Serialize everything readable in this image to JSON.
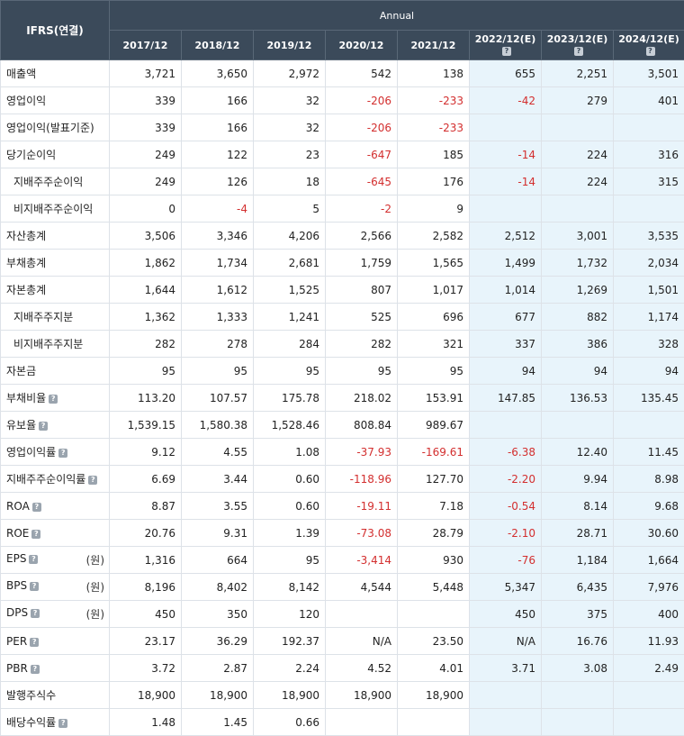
{
  "header": {
    "corner": "IFRS(연결)",
    "group": "Annual",
    "years": [
      {
        "label": "2017/12",
        "estimate": false
      },
      {
        "label": "2018/12",
        "estimate": false
      },
      {
        "label": "2019/12",
        "estimate": false
      },
      {
        "label": "2020/12",
        "estimate": false
      },
      {
        "label": "2021/12",
        "estimate": false
      },
      {
        "label": "2022/12(E)",
        "estimate": true
      },
      {
        "label": "2023/12(E)",
        "estimate": true
      },
      {
        "label": "2024/12(E)",
        "estimate": true
      }
    ]
  },
  "help_icon": "?",
  "rows": [
    {
      "label": "매출액",
      "sub": false,
      "help": false,
      "unit": "",
      "values": [
        "3,721",
        "3,650",
        "2,972",
        "542",
        "138",
        "655",
        "2,251",
        "3,501"
      ]
    },
    {
      "label": "영업이익",
      "sub": false,
      "help": false,
      "unit": "",
      "values": [
        "339",
        "166",
        "32",
        "-206",
        "-233",
        "-42",
        "279",
        "401"
      ]
    },
    {
      "label": "영업이익(발표기준)",
      "sub": false,
      "help": false,
      "unit": "",
      "values": [
        "339",
        "166",
        "32",
        "-206",
        "-233",
        "",
        "",
        ""
      ]
    },
    {
      "label": "당기순이익",
      "sub": false,
      "help": false,
      "unit": "",
      "values": [
        "249",
        "122",
        "23",
        "-647",
        "185",
        "-14",
        "224",
        "316"
      ]
    },
    {
      "label": "지배주주순이익",
      "sub": true,
      "help": false,
      "unit": "",
      "values": [
        "249",
        "126",
        "18",
        "-645",
        "176",
        "-14",
        "224",
        "315"
      ]
    },
    {
      "label": "비지배주주순이익",
      "sub": true,
      "help": false,
      "unit": "",
      "values": [
        "0",
        "-4",
        "5",
        "-2",
        "9",
        "",
        "",
        ""
      ]
    },
    {
      "label": "자산총계",
      "sub": false,
      "help": false,
      "unit": "",
      "values": [
        "3,506",
        "3,346",
        "4,206",
        "2,566",
        "2,582",
        "2,512",
        "3,001",
        "3,535"
      ]
    },
    {
      "label": "부채총계",
      "sub": false,
      "help": false,
      "unit": "",
      "values": [
        "1,862",
        "1,734",
        "2,681",
        "1,759",
        "1,565",
        "1,499",
        "1,732",
        "2,034"
      ]
    },
    {
      "label": "자본총계",
      "sub": false,
      "help": false,
      "unit": "",
      "values": [
        "1,644",
        "1,612",
        "1,525",
        "807",
        "1,017",
        "1,014",
        "1,269",
        "1,501"
      ]
    },
    {
      "label": "지배주주지분",
      "sub": true,
      "help": false,
      "unit": "",
      "values": [
        "1,362",
        "1,333",
        "1,241",
        "525",
        "696",
        "677",
        "882",
        "1,174"
      ]
    },
    {
      "label": "비지배주주지분",
      "sub": true,
      "help": false,
      "unit": "",
      "values": [
        "282",
        "278",
        "284",
        "282",
        "321",
        "337",
        "386",
        "328"
      ]
    },
    {
      "label": "자본금",
      "sub": false,
      "help": false,
      "unit": "",
      "values": [
        "95",
        "95",
        "95",
        "95",
        "95",
        "94",
        "94",
        "94"
      ]
    },
    {
      "label": "부채비율",
      "sub": false,
      "help": true,
      "unit": "",
      "values": [
        "113.20",
        "107.57",
        "175.78",
        "218.02",
        "153.91",
        "147.85",
        "136.53",
        "135.45"
      ]
    },
    {
      "label": "유보율",
      "sub": false,
      "help": true,
      "unit": "",
      "values": [
        "1,539.15",
        "1,580.38",
        "1,528.46",
        "808.84",
        "989.67",
        "",
        "",
        ""
      ]
    },
    {
      "label": "영업이익률",
      "sub": false,
      "help": true,
      "unit": "",
      "values": [
        "9.12",
        "4.55",
        "1.08",
        "-37.93",
        "-169.61",
        "-6.38",
        "12.40",
        "11.45"
      ]
    },
    {
      "label": "지배주주순이익률",
      "sub": false,
      "help": true,
      "unit": "",
      "values": [
        "6.69",
        "3.44",
        "0.60",
        "-118.96",
        "127.70",
        "-2.20",
        "9.94",
        "8.98"
      ]
    },
    {
      "label": "ROA",
      "sub": false,
      "help": true,
      "unit": "",
      "values": [
        "8.87",
        "3.55",
        "0.60",
        "-19.11",
        "7.18",
        "-0.54",
        "8.14",
        "9.68"
      ]
    },
    {
      "label": "ROE",
      "sub": false,
      "help": true,
      "unit": "",
      "values": [
        "20.76",
        "9.31",
        "1.39",
        "-73.08",
        "28.79",
        "-2.10",
        "28.71",
        "30.60"
      ]
    },
    {
      "label": "EPS",
      "sub": false,
      "help": true,
      "unit": "(원)",
      "values": [
        "1,316",
        "664",
        "95",
        "-3,414",
        "930",
        "-76",
        "1,184",
        "1,664"
      ]
    },
    {
      "label": "BPS",
      "sub": false,
      "help": true,
      "unit": "(원)",
      "values": [
        "8,196",
        "8,402",
        "8,142",
        "4,544",
        "5,448",
        "5,347",
        "6,435",
        "7,976"
      ]
    },
    {
      "label": "DPS",
      "sub": false,
      "help": true,
      "unit": "(원)",
      "values": [
        "450",
        "350",
        "120",
        "",
        "",
        "450",
        "375",
        "400"
      ]
    },
    {
      "label": "PER",
      "sub": false,
      "help": true,
      "unit": "",
      "values": [
        "23.17",
        "36.29",
        "192.37",
        "N/A",
        "23.50",
        "N/A",
        "16.76",
        "11.93"
      ]
    },
    {
      "label": "PBR",
      "sub": false,
      "help": true,
      "unit": "",
      "values": [
        "3.72",
        "2.87",
        "2.24",
        "4.52",
        "4.01",
        "3.71",
        "3.08",
        "2.49"
      ]
    },
    {
      "label": "발행주식수",
      "sub": false,
      "help": false,
      "unit": "",
      "values": [
        "18,900",
        "18,900",
        "18,900",
        "18,900",
        "18,900",
        "",
        "",
        ""
      ]
    },
    {
      "label": "배당수익률",
      "sub": false,
      "help": true,
      "unit": "",
      "values": [
        "1.48",
        "1.45",
        "0.66",
        "",
        "",
        "",
        "",
        ""
      ]
    }
  ]
}
